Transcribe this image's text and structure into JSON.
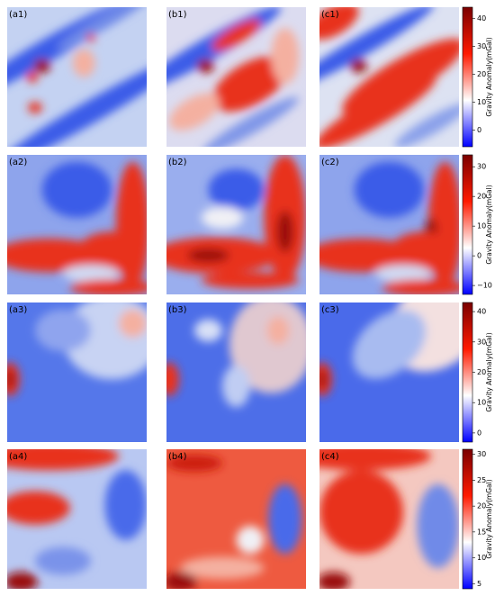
{
  "chart_data": [
    {
      "type": "heatmap",
      "panel_labels": [
        "(a1)",
        "(b1)",
        "(c1)"
      ],
      "colorbar_label": "Gravity Anomaly(mGal)",
      "colormap": [
        "#0000ff",
        "#ffffff",
        "#ff1a00",
        "#7a0000"
      ],
      "ylim": [
        -6,
        44
      ],
      "yticks": [
        0,
        10,
        20,
        30,
        40
      ]
    },
    {
      "type": "heatmap",
      "panel_labels": [
        "(a2)",
        "(b2)",
        "(c2)"
      ],
      "colorbar_label": "Gravity Anomaly(mGal)",
      "colormap": [
        "#0000ff",
        "#ffffff",
        "#ff1a00",
        "#7a0000"
      ],
      "ylim": [
        -13,
        34
      ],
      "yticks": [
        {
          "value": -10,
          "label": "−10"
        },
        0,
        10,
        20,
        30
      ]
    },
    {
      "type": "heatmap",
      "panel_labels": [
        "(a3)",
        "(b3)",
        "(c3)"
      ],
      "colorbar_label": "Gravity Anomaly(mGal)",
      "colormap": [
        "#0000ff",
        "#ffffff",
        "#ff1a00",
        "#7a0000"
      ],
      "ylim": [
        -3,
        43
      ],
      "yticks": [
        0,
        10,
        20,
        30,
        40
      ]
    },
    {
      "type": "heatmap",
      "panel_labels": [
        "(a4)",
        "(b4)",
        "(c4)"
      ],
      "colorbar_label": "Gravity Anomaly(mGal)",
      "colormap": [
        "#0000ff",
        "#ffffff",
        "#ff1a00",
        "#7a0000"
      ],
      "ylim": [
        4,
        31
      ],
      "yticks": [
        5,
        10,
        15,
        20,
        25,
        30
      ]
    }
  ]
}
